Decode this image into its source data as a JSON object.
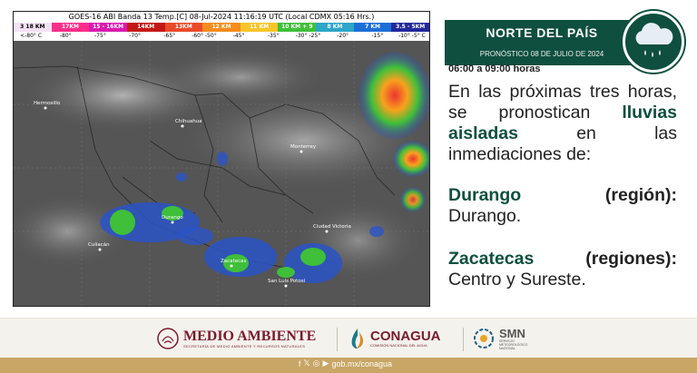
{
  "satellite": {
    "header": "GOES-16 ABI Banda 13 Temp.[C] 08-Jul-2024 11:16:19 UTC (Local CDMX  05:16 Hrs.)",
    "scale_labels": [
      "3 18 KM",
      "17KM",
      "15 - 16KM",
      "14KM",
      "13KM",
      "12 KM",
      "11 KM",
      "10 KM + 9 KM",
      "8 KM",
      "7 KM",
      "3.5 - 5KM"
    ],
    "scale_colors": [
      "#f4e0f4",
      "#ff2d8a",
      "#d81ab0",
      "#c41818",
      "#e84a2a",
      "#f58c1c",
      "#f7c52a",
      "#3fbf3a",
      "#2ca6c9",
      "#1d6fd6",
      "#22289a"
    ],
    "temp_ticks": [
      "<-80° C",
      "-80°",
      "-75°",
      "-70°",
      "-65°",
      "-60° -50°",
      "-45°",
      "-35°",
      "-30°  -25°",
      "-20°",
      "-15°",
      "-10°   -5° C"
    ],
    "city_labels": [
      "Hermosillo",
      "Chihuahua",
      "Monterrey",
      "Zacatecas",
      "Culiacán",
      "Durango",
      "San Luis Potosí",
      "Ciudad Victoria"
    ]
  },
  "panel": {
    "region_title": "NORTE DEL PAÍS",
    "date_text": "PRONÓSTICO 08 DE JULIO DE 2024",
    "weather_icon": "cloud-rain-icon",
    "time_range": "06:00 a 09:00 horas",
    "intro_plain_1": "En las próximas tres horas, se pronostican",
    "intro_bold": "lluvias aisladas",
    "intro_plain_2": "en las inmediaciones de:",
    "states": [
      {
        "name": "Durango",
        "regions": "(región):",
        "detail": "Durango."
      },
      {
        "name": "Zacatecas",
        "regions": "(regiones):",
        "detail": "Centro y Sureste."
      }
    ]
  },
  "footer": {
    "logo1_title": "MEDIO AMBIENTE",
    "logo1_subtitle": "SECRETARÍA DE MEDIO AMBIENTE Y RECURSOS NATURALES",
    "logo2_title": "CONAGUA",
    "logo2_subtitle": "COMISIÓN NACIONAL DEL AGUA",
    "logo3_title": "SMN",
    "logo3_subtitle": "SERVICIO METEOROLÓGICO NACIONAL",
    "website": "gob.mx/conagua",
    "brand_color": "#7a1a2e",
    "accent_color": "#0f4f3f",
    "bar_color": "#c8a665"
  }
}
